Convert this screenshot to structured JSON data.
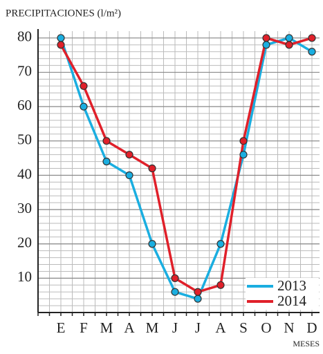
{
  "chart_data": {
    "type": "line",
    "title": "PRECIPITACIONES (l/m²)",
    "x_label": "MESES",
    "categories": [
      "E",
      "F",
      "M",
      "A",
      "M",
      "J",
      "J",
      "A",
      "S",
      "O",
      "N",
      "D"
    ],
    "series": [
      {
        "name": "2013",
        "color": "#1aaee0",
        "values": [
          80,
          60,
          44,
          40,
          20,
          6,
          4,
          20,
          46,
          78,
          80,
          76
        ]
      },
      {
        "name": "2014",
        "color": "#e0202a",
        "values": [
          78,
          66,
          50,
          46,
          42,
          10,
          6,
          8,
          50,
          80,
          78,
          80
        ]
      }
    ],
    "ylim": [
      0,
      82
    ],
    "yticks": [
      10,
      20,
      30,
      40,
      50,
      60,
      70,
      80
    ],
    "grid": true,
    "legend": "lower right"
  }
}
